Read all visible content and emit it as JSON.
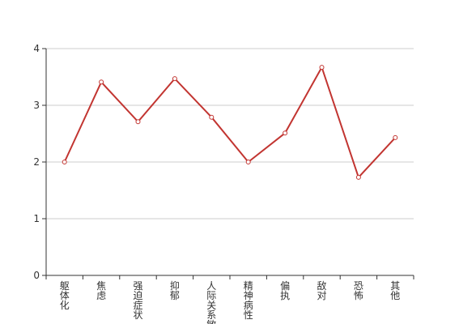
{
  "chart_data": {
    "type": "line",
    "categories": [
      "躯体化",
      "焦虑",
      "强迫症状",
      "抑郁",
      "人际关系敏感",
      "精神病性",
      "偏执",
      "敌对",
      "恐怖",
      "其他"
    ],
    "values": [
      2.0,
      3.41,
      2.71,
      3.47,
      2.79,
      2.0,
      2.51,
      3.67,
      1.73,
      2.43
    ],
    "color": "#c23531",
    "ylim": [
      0,
      4
    ],
    "yticks": [
      0,
      1,
      2,
      3,
      4
    ],
    "grid": true
  }
}
